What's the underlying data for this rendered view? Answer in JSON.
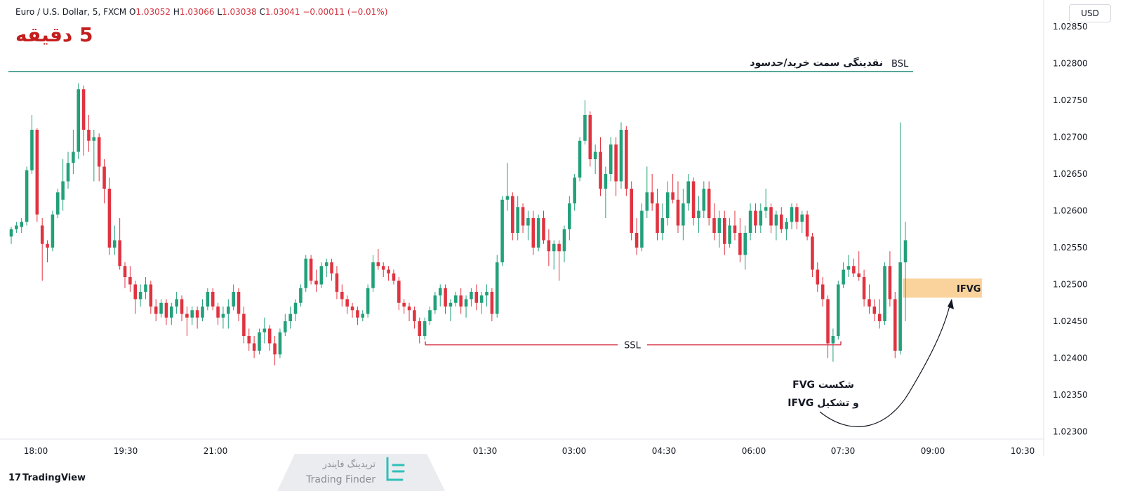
{
  "header": {
    "symbol": "Euro / U.S. Dollar, 5, FXCM",
    "o_label": "O",
    "o": "1.03052",
    "h_label": "H",
    "h": "1.03066",
    "l_label": "L",
    "l": "1.03038",
    "c_label": "C",
    "c": "1.03041",
    "change": "−0.00011 (−0.01%)"
  },
  "currency_button": "USD",
  "timeframe_title": "5 دقیقه",
  "footer_brand": "TradingView",
  "watermark": {
    "fa": "تریدینگ فایندر",
    "en": "Trading Finder"
  },
  "colors": {
    "up": "#22a07a",
    "down": "#e03340",
    "bsl_line": "#1e8a78",
    "ssl_line": "#d8354a",
    "ifvg_box": "#f7c882",
    "title": "#c41e1e"
  },
  "chart_data": {
    "type": "candlestick",
    "symbol": "EURUSD",
    "interval": "5",
    "ylim": [
      1.0229,
      1.0286
    ],
    "y_ticks": [
      "1.02850",
      "1.02800",
      "1.02750",
      "1.02700",
      "1.02650",
      "1.02600",
      "1.02550",
      "1.02500",
      "1.02450",
      "1.02400",
      "1.02350",
      "1.02300"
    ],
    "x_ticks": [
      "18:00",
      "19:30",
      "21:00",
      "01:30",
      "03:00",
      "04:30",
      "06:00",
      "07:30",
      "09:00",
      "10:30"
    ],
    "annotations": {
      "bsl": {
        "price": 1.02789,
        "label": "BSL",
        "text": "نقدینگی سمت خرید/حدسود"
      },
      "ssl": {
        "price": 1.02418,
        "label": "SSL"
      },
      "ifvg": {
        "price_low": 1.02482,
        "price_high": 1.02508,
        "label": "IFVG"
      },
      "note_line1": "شکست FVG",
      "note_line2": "و تشکیل IFVG"
    },
    "candles": [
      [
        1.02565,
        1.02578,
        1.02555,
        1.02575
      ],
      [
        1.02575,
        1.02585,
        1.0257,
        1.0258
      ],
      [
        1.02578,
        1.0259,
        1.0257,
        1.02585
      ],
      [
        1.02585,
        1.0266,
        1.0258,
        1.02655
      ],
      [
        1.02655,
        1.0273,
        1.0265,
        1.0271
      ],
      [
        1.0271,
        1.02712,
        1.02585,
        1.02595
      ],
      [
        1.0258,
        1.0259,
        1.02505,
        1.02555
      ],
      [
        1.02555,
        1.0256,
        1.0253,
        1.0255
      ],
      [
        1.0255,
        1.026,
        1.02545,
        1.02595
      ],
      [
        1.02595,
        1.0263,
        1.0259,
        1.02625
      ],
      [
        1.02615,
        1.0267,
        1.026,
        1.0264
      ],
      [
        1.0264,
        1.0268,
        1.0263,
        1.02665
      ],
      [
        1.02665,
        1.0271,
        1.0265,
        1.0268
      ],
      [
        1.0268,
        1.02773,
        1.0267,
        1.02765
      ],
      [
        1.02765,
        1.0277,
        1.02675,
        1.0271
      ],
      [
        1.0271,
        1.0273,
        1.0268,
        1.02695
      ],
      [
        1.02695,
        1.0271,
        1.0264,
        1.027
      ],
      [
        1.027,
        1.02705,
        1.0264,
        1.0266
      ],
      [
        1.0266,
        1.0267,
        1.0261,
        1.0263
      ],
      [
        1.0263,
        1.02645,
        1.0254,
        1.0255
      ],
      [
        1.0255,
        1.0258,
        1.0254,
        1.0256
      ],
      [
        1.0256,
        1.0259,
        1.0252,
        1.02525
      ],
      [
        1.02525,
        1.0253,
        1.02495,
        1.0251
      ],
      [
        1.0251,
        1.02525,
        1.0249,
        1.025
      ],
      [
        1.025,
        1.02505,
        1.0246,
        1.0248
      ],
      [
        1.0248,
        1.025,
        1.0247,
        1.0249
      ],
      [
        1.0249,
        1.0251,
        1.0248,
        1.025
      ],
      [
        1.025,
        1.02505,
        1.0246,
        1.0247
      ],
      [
        1.0247,
        1.0248,
        1.0245,
        1.0246
      ],
      [
        1.0246,
        1.0248,
        1.02455,
        1.02475
      ],
      [
        1.02475,
        1.0248,
        1.02445,
        1.02455
      ],
      [
        1.02455,
        1.02475,
        1.02445,
        1.0247
      ],
      [
        1.0247,
        1.0249,
        1.0246,
        1.0248
      ],
      [
        1.0248,
        1.02485,
        1.0245,
        1.0246
      ],
      [
        1.0246,
        1.0247,
        1.0243,
        1.02455
      ],
      [
        1.02455,
        1.0247,
        1.02445,
        1.02465
      ],
      [
        1.02465,
        1.0247,
        1.0244,
        1.02455
      ],
      [
        1.02455,
        1.0248,
        1.0245,
        1.0247
      ],
      [
        1.0247,
        1.02495,
        1.02465,
        1.0249
      ],
      [
        1.0249,
        1.02495,
        1.02465,
        1.0247
      ],
      [
        1.0247,
        1.02475,
        1.02445,
        1.02455
      ],
      [
        1.02455,
        1.0247,
        1.0244,
        1.0246
      ],
      [
        1.0246,
        1.0248,
        1.0244,
        1.0247
      ],
      [
        1.0247,
        1.025,
        1.02465,
        1.0249
      ],
      [
        1.0249,
        1.02495,
        1.0245,
        1.0246
      ],
      [
        1.0246,
        1.0247,
        1.0242,
        1.0243
      ],
      [
        1.0243,
        1.0244,
        1.0241,
        1.0242
      ],
      [
        1.0242,
        1.0243,
        1.024,
        1.0241
      ],
      [
        1.0241,
        1.0244,
        1.02405,
        1.02435
      ],
      [
        1.02435,
        1.02455,
        1.0242,
        1.0244
      ],
      [
        1.0244,
        1.02445,
        1.0241,
        1.0242
      ],
      [
        1.0242,
        1.0243,
        1.0239,
        1.02405
      ],
      [
        1.02405,
        1.0244,
        1.024,
        1.02435
      ],
      [
        1.02435,
        1.0246,
        1.0243,
        1.0245
      ],
      [
        1.0245,
        1.0247,
        1.0244,
        1.0246
      ],
      [
        1.0246,
        1.0248,
        1.0245,
        1.02475
      ],
      [
        1.02475,
        1.025,
        1.0247,
        1.02495
      ],
      [
        1.02495,
        1.0254,
        1.0249,
        1.02535
      ],
      [
        1.02535,
        1.0254,
        1.025,
        1.02505
      ],
      [
        1.02505,
        1.0252,
        1.0249,
        1.025
      ],
      [
        1.025,
        1.0253,
        1.02495,
        1.02525
      ],
      [
        1.02525,
        1.02535,
        1.0251,
        1.0253
      ],
      [
        1.0253,
        1.02535,
        1.02505,
        1.02515
      ],
      [
        1.02515,
        1.02525,
        1.0248,
        1.0249
      ],
      [
        1.0249,
        1.025,
        1.0247,
        1.0248
      ],
      [
        1.0248,
        1.02485,
        1.0246,
        1.0247
      ],
      [
        1.0247,
        1.02475,
        1.02455,
        1.02465
      ],
      [
        1.02465,
        1.0247,
        1.02445,
        1.02455
      ],
      [
        1.02455,
        1.02465,
        1.0245,
        1.0246
      ],
      [
        1.0246,
        1.025,
        1.02455,
        1.02495
      ],
      [
        1.02495,
        1.0254,
        1.0249,
        1.0253
      ],
      [
        1.0253,
        1.02548,
        1.0252,
        1.02525
      ],
      [
        1.02525,
        1.0253,
        1.0251,
        1.0252
      ],
      [
        1.0252,
        1.02525,
        1.02505,
        1.02515
      ],
      [
        1.02515,
        1.0252,
        1.025,
        1.02505
      ],
      [
        1.02505,
        1.0251,
        1.02465,
        1.02475
      ],
      [
        1.02475,
        1.0248,
        1.0246,
        1.0247
      ],
      [
        1.0247,
        1.02475,
        1.0245,
        1.02465
      ],
      [
        1.02465,
        1.0247,
        1.0244,
        1.0245
      ],
      [
        1.0245,
        1.02455,
        1.0242,
        1.0243
      ],
      [
        1.0243,
        1.02455,
        1.02425,
        1.0245
      ],
      [
        1.0245,
        1.0247,
        1.02445,
        1.02465
      ],
      [
        1.02465,
        1.0249,
        1.0246,
        1.02485
      ],
      [
        1.02485,
        1.025,
        1.0247,
        1.02495
      ],
      [
        1.02495,
        1.025,
        1.0246,
        1.0247
      ],
      [
        1.0247,
        1.0248,
        1.0245,
        1.02475
      ],
      [
        1.02475,
        1.0249,
        1.0247,
        1.02485
      ],
      [
        1.02485,
        1.02495,
        1.0246,
        1.0247
      ],
      [
        1.0247,
        1.02485,
        1.02455,
        1.0248
      ],
      [
        1.0248,
        1.02495,
        1.0247,
        1.0249
      ],
      [
        1.0249,
        1.025,
        1.02465,
        1.02475
      ],
      [
        1.02475,
        1.0249,
        1.0246,
        1.02485
      ],
      [
        1.02485,
        1.025,
        1.0247,
        1.0249
      ],
      [
        1.0249,
        1.02495,
        1.0245,
        1.0246
      ],
      [
        1.0246,
        1.0254,
        1.02455,
        1.0253
      ],
      [
        1.0253,
        1.0262,
        1.02525,
        1.02615
      ],
      [
        1.02615,
        1.02665,
        1.026,
        1.0262
      ],
      [
        1.0262,
        1.02625,
        1.0256,
        1.0257
      ],
      [
        1.0257,
        1.0262,
        1.0256,
        1.02605
      ],
      [
        1.02605,
        1.0261,
        1.0257,
        1.0258
      ],
      [
        1.0258,
        1.026,
        1.0256,
        1.0259
      ],
      [
        1.0259,
        1.026,
        1.0254,
        1.0255
      ],
      [
        1.0255,
        1.02595,
        1.02545,
        1.0259
      ],
      [
        1.0259,
        1.026,
        1.02555,
        1.0256
      ],
      [
        1.0256,
        1.02575,
        1.02525,
        1.02545
      ],
      [
        1.02545,
        1.0256,
        1.0252,
        1.02555
      ],
      [
        1.02555,
        1.0256,
        1.02505,
        1.02545
      ],
      [
        1.02545,
        1.0258,
        1.0253,
        1.02575
      ],
      [
        1.02575,
        1.0262,
        1.0256,
        1.0261
      ],
      [
        1.0261,
        1.0265,
        1.026,
        1.02645
      ],
      [
        1.02645,
        1.027,
        1.0264,
        1.02695
      ],
      [
        1.02695,
        1.0275,
        1.0269,
        1.0273
      ],
      [
        1.0273,
        1.02735,
        1.0266,
        1.0267
      ],
      [
        1.0267,
        1.0269,
        1.0265,
        1.0268
      ],
      [
        1.0268,
        1.027,
        1.0262,
        1.0263
      ],
      [
        1.0263,
        1.0266,
        1.0259,
        1.0265
      ],
      [
        1.0265,
        1.027,
        1.0264,
        1.0269
      ],
      [
        1.0269,
        1.027,
        1.0262,
        1.0264
      ],
      [
        1.0264,
        1.0272,
        1.0263,
        1.0271
      ],
      [
        1.0271,
        1.02715,
        1.0262,
        1.0263
      ],
      [
        1.0263,
        1.0264,
        1.0256,
        1.0257
      ],
      [
        1.0257,
        1.0259,
        1.0254,
        1.0255
      ],
      [
        1.0255,
        1.0261,
        1.02545,
        1.026
      ],
      [
        1.026,
        1.0266,
        1.0259,
        1.02625
      ],
      [
        1.02625,
        1.0265,
        1.026,
        1.0261
      ],
      [
        1.0261,
        1.0263,
        1.0256,
        1.0257
      ],
      [
        1.0257,
        1.0261,
        1.0256,
        1.0259
      ],
      [
        1.0259,
        1.0264,
        1.0258,
        1.02625
      ],
      [
        1.02625,
        1.0265,
        1.0261,
        1.02615
      ],
      [
        1.02615,
        1.0264,
        1.0257,
        1.0258
      ],
      [
        1.0258,
        1.0263,
        1.0256,
        1.0261
      ],
      [
        1.0261,
        1.0265,
        1.026,
        1.0264
      ],
      [
        1.0264,
        1.02645,
        1.0258,
        1.0259
      ],
      [
        1.0259,
        1.0262,
        1.0257,
        1.026
      ],
      [
        1.026,
        1.0264,
        1.0259,
        1.0263
      ],
      [
        1.0263,
        1.0264,
        1.0258,
        1.0259
      ],
      [
        1.0259,
        1.0261,
        1.0256,
        1.0257
      ],
      [
        1.0257,
        1.026,
        1.0255,
        1.0259
      ],
      [
        1.0259,
        1.026,
        1.0254,
        1.02555
      ],
      [
        1.02555,
        1.0259,
        1.0255,
        1.0258
      ],
      [
        1.0258,
        1.026,
        1.0256,
        1.0257
      ],
      [
        1.0257,
        1.0259,
        1.0253,
        1.0254
      ],
      [
        1.0254,
        1.0258,
        1.0252,
        1.0257
      ],
      [
        1.0257,
        1.0261,
        1.0256,
        1.026
      ],
      [
        1.026,
        1.0261,
        1.0257,
        1.0258
      ],
      [
        1.0258,
        1.0261,
        1.0257,
        1.026
      ],
      [
        1.026,
        1.0263,
        1.0259,
        1.02605
      ],
      [
        1.02605,
        1.0261,
        1.0257,
        1.0258
      ],
      [
        1.0258,
        1.026,
        1.0256,
        1.02595
      ],
      [
        1.02595,
        1.02605,
        1.0257,
        1.02575
      ],
      [
        1.02575,
        1.0259,
        1.0256,
        1.02585
      ],
      [
        1.02585,
        1.0261,
        1.02575,
        1.02605
      ],
      [
        1.02605,
        1.0261,
        1.02575,
        1.02585
      ],
      [
        1.02585,
        1.026,
        1.0257,
        1.02595
      ],
      [
        1.02595,
        1.026,
        1.0256,
        1.02565
      ],
      [
        1.02565,
        1.0257,
        1.0251,
        1.0252
      ],
      [
        1.0252,
        1.0253,
        1.0249,
        1.025
      ],
      [
        1.025,
        1.0251,
        1.0247,
        1.0248
      ],
      [
        1.0248,
        1.02485,
        1.024,
        1.0242
      ],
      [
        1.0242,
        1.0244,
        1.02395,
        1.0243
      ],
      [
        1.0243,
        1.02505,
        1.02425,
        1.025
      ],
      [
        1.025,
        1.0253,
        1.02495,
        1.0252
      ],
      [
        1.0252,
        1.0254,
        1.0251,
        1.02525
      ],
      [
        1.02525,
        1.02535,
        1.0251,
        1.02515
      ],
      [
        1.02515,
        1.02545,
        1.02505,
        1.0251
      ],
      [
        1.0251,
        1.0252,
        1.0247,
        1.0248
      ],
      [
        1.0248,
        1.025,
        1.0246,
        1.0247
      ],
      [
        1.0247,
        1.0248,
        1.0245,
        1.0246
      ],
      [
        1.0246,
        1.0248,
        1.0244,
        1.0245
      ],
      [
        1.0245,
        1.0253,
        1.02445,
        1.02525
      ],
      [
        1.02525,
        1.02545,
        1.0247,
        1.0248
      ],
      [
        1.0248,
        1.0249,
        1.024,
        1.0241
      ],
      [
        1.0241,
        1.0272,
        1.02405,
        1.0253
      ],
      [
        1.0253,
        1.02585,
        1.0245,
        1.0256
      ]
    ]
  }
}
